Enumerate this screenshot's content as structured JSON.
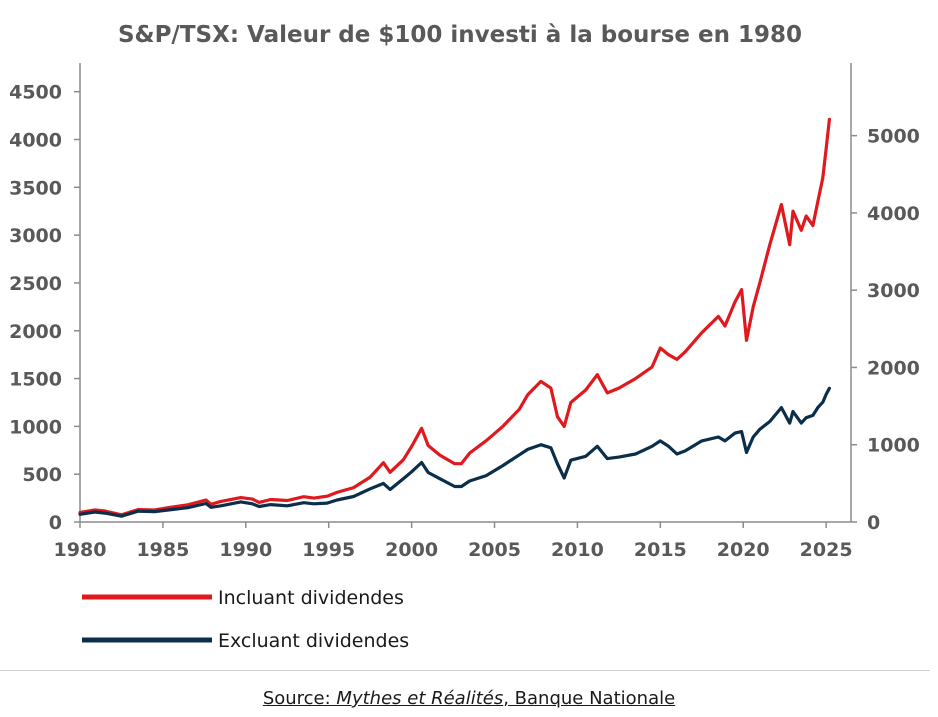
{
  "chart_data": {
    "type": "line",
    "title": "S&P/TSX: Valeur de $100 investi à la bourse en 1980",
    "xlabel": "",
    "ylabel": "",
    "xlim": [
      1980,
      2026.5
    ],
    "ylim_left": [
      0,
      4800
    ],
    "ylim_right": [
      0,
      5940
    ],
    "x_ticks": [
      1980,
      1985,
      1990,
      1995,
      2000,
      2005,
      2010,
      2015,
      2020,
      2025
    ],
    "y_ticks_left": [
      0,
      500,
      1000,
      1500,
      2000,
      2500,
      3000,
      3500,
      4000,
      4500
    ],
    "y_ticks_right": [
      0,
      1000,
      2000,
      3000,
      4000,
      5000
    ],
    "grid": false,
    "legend_position": "bottom-left",
    "series": [
      {
        "name": "Incluant dividendes",
        "color": "#e0191e",
        "axis": "left",
        "x": [
          1980.0,
          1980.9,
          1981.5,
          1982.5,
          1983.5,
          1984.5,
          1985.5,
          1986.5,
          1987.6,
          1987.9,
          1988.5,
          1989.7,
          1990.4,
          1990.8,
          1991.5,
          1992.5,
          1993.5,
          1994.1,
          1994.9,
          1995.5,
          1996.5,
          1997.5,
          1998.3,
          1998.7,
          1999.5,
          2000.0,
          2000.6,
          2001.0,
          2001.7,
          2002.6,
          2003.0,
          2003.5,
          2004.5,
          2005.5,
          2006.5,
          2007.0,
          2007.8,
          2008.4,
          2008.8,
          2009.2,
          2009.6,
          2010.5,
          2011.2,
          2011.8,
          2012.5,
          2013.5,
          2014.5,
          2015.0,
          2015.5,
          2016.0,
          2016.5,
          2017.5,
          2018.5,
          2018.9,
          2019.5,
          2019.9,
          2020.2,
          2020.6,
          2021.0,
          2021.6,
          2022.3,
          2022.8,
          2023.0,
          2023.5,
          2023.8,
          2024.2,
          2024.5,
          2024.8,
          2025.0,
          2025.2
        ],
        "values": [
          100,
          125,
          115,
          75,
          130,
          125,
          155,
          180,
          230,
          185,
          215,
          255,
          240,
          205,
          235,
          225,
          265,
          250,
          270,
          310,
          360,
          470,
          620,
          520,
          650,
          790,
          980,
          800,
          700,
          610,
          610,
          720,
          850,
          1000,
          1180,
          1330,
          1470,
          1400,
          1100,
          1000,
          1250,
          1380,
          1540,
          1350,
          1400,
          1500,
          1620,
          1820,
          1750,
          1700,
          1780,
          1980,
          2150,
          2050,
          2300,
          2430,
          1900,
          2250,
          2500,
          2900,
          3320,
          2900,
          3250,
          3050,
          3200,
          3100,
          3350,
          3600,
          3900,
          4210
        ]
      },
      {
        "name": "Excluant dividendes",
        "color": "#0b2e4a",
        "axis": "right",
        "x": [
          1980.0,
          1980.9,
          1981.5,
          1982.5,
          1983.5,
          1984.5,
          1985.5,
          1986.5,
          1987.6,
          1987.9,
          1988.5,
          1989.7,
          1990.4,
          1990.8,
          1991.5,
          1992.5,
          1993.5,
          1994.1,
          1994.9,
          1995.5,
          1996.5,
          1997.5,
          1998.3,
          1998.7,
          1999.5,
          2000.0,
          2000.6,
          2001.0,
          2001.7,
          2002.6,
          2003.0,
          2003.5,
          2004.5,
          2005.5,
          2006.5,
          2007.0,
          2007.8,
          2008.4,
          2008.8,
          2009.2,
          2009.6,
          2010.5,
          2011.2,
          2011.8,
          2012.5,
          2013.5,
          2014.5,
          2015.0,
          2015.5,
          2016.0,
          2016.5,
          2017.5,
          2018.5,
          2018.9,
          2019.5,
          2019.9,
          2020.2,
          2020.6,
          2021.0,
          2021.6,
          2022.3,
          2022.8,
          2023.0,
          2023.5,
          2023.8,
          2024.2,
          2024.5,
          2024.8,
          2025.0,
          2025.2
        ],
        "values": [
          100,
          130,
          115,
          75,
          140,
          135,
          160,
          185,
          240,
          190,
          210,
          260,
          235,
          200,
          225,
          210,
          250,
          235,
          245,
          285,
          330,
          430,
          500,
          420,
          560,
          650,
          770,
          640,
          560,
          460,
          460,
          530,
          600,
          730,
          870,
          940,
          1000,
          960,
          750,
          570,
          800,
          850,
          980,
          820,
          840,
          880,
          980,
          1050,
          980,
          880,
          920,
          1050,
          1100,
          1050,
          1150,
          1170,
          900,
          1100,
          1200,
          1300,
          1480,
          1280,
          1430,
          1280,
          1350,
          1380,
          1480,
          1550,
          1650,
          1730
        ]
      }
    ],
    "legend": [
      {
        "label": "Incluant dividendes",
        "color": "#e0191e"
      },
      {
        "label": "Excluant dividendes",
        "color": "#0b2e4a"
      }
    ]
  },
  "source": {
    "prefix": "Source: ",
    "italic": "Mythes et Réalités",
    "suffix": ", Banque Nationale"
  }
}
